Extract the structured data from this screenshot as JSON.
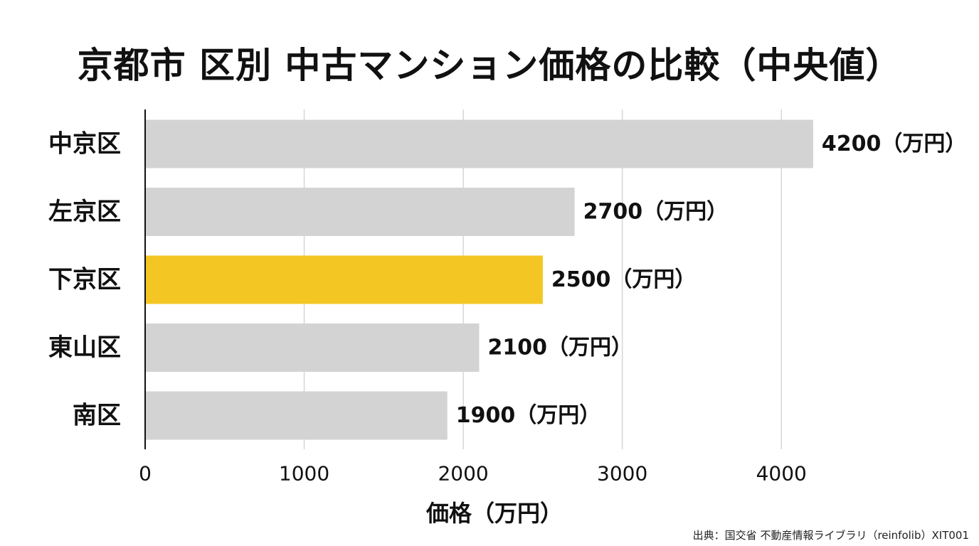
{
  "title": "京都市 区別 中古マンション価格の比較（中央値）",
  "source": "出典：国交省 不動産情報ライブラリ（reinfolib）XIT001",
  "colors": {
    "bar_default": "#d3d3d3",
    "bar_highlight": "#f3c623",
    "grid": "#d6d6d6",
    "axis": "#111111",
    "text": "#111111"
  },
  "chart_data": {
    "type": "bar",
    "orientation": "horizontal",
    "title": "京都市 区別 中古マンション価格の比較（中央値）",
    "categories": [
      "中京区",
      "左京区",
      "下京区",
      "東山区",
      "南区"
    ],
    "values": [
      4200,
      2700,
      2500,
      2100,
      1900
    ],
    "value_labels": [
      "4200（万円）",
      "2700（万円）",
      "2500（万円）",
      "2100（万円）",
      "1900（万円）"
    ],
    "highlight_category": "下京区",
    "xlabel": "価格（万円）",
    "ylabel": "",
    "xlim": [
      0,
      4500
    ],
    "xticks": [
      0,
      1000,
      2000,
      3000,
      4000
    ],
    "xtick_labels": [
      "0",
      "1000",
      "2000",
      "3000",
      "4000"
    ],
    "grid": true,
    "legend": "none"
  }
}
